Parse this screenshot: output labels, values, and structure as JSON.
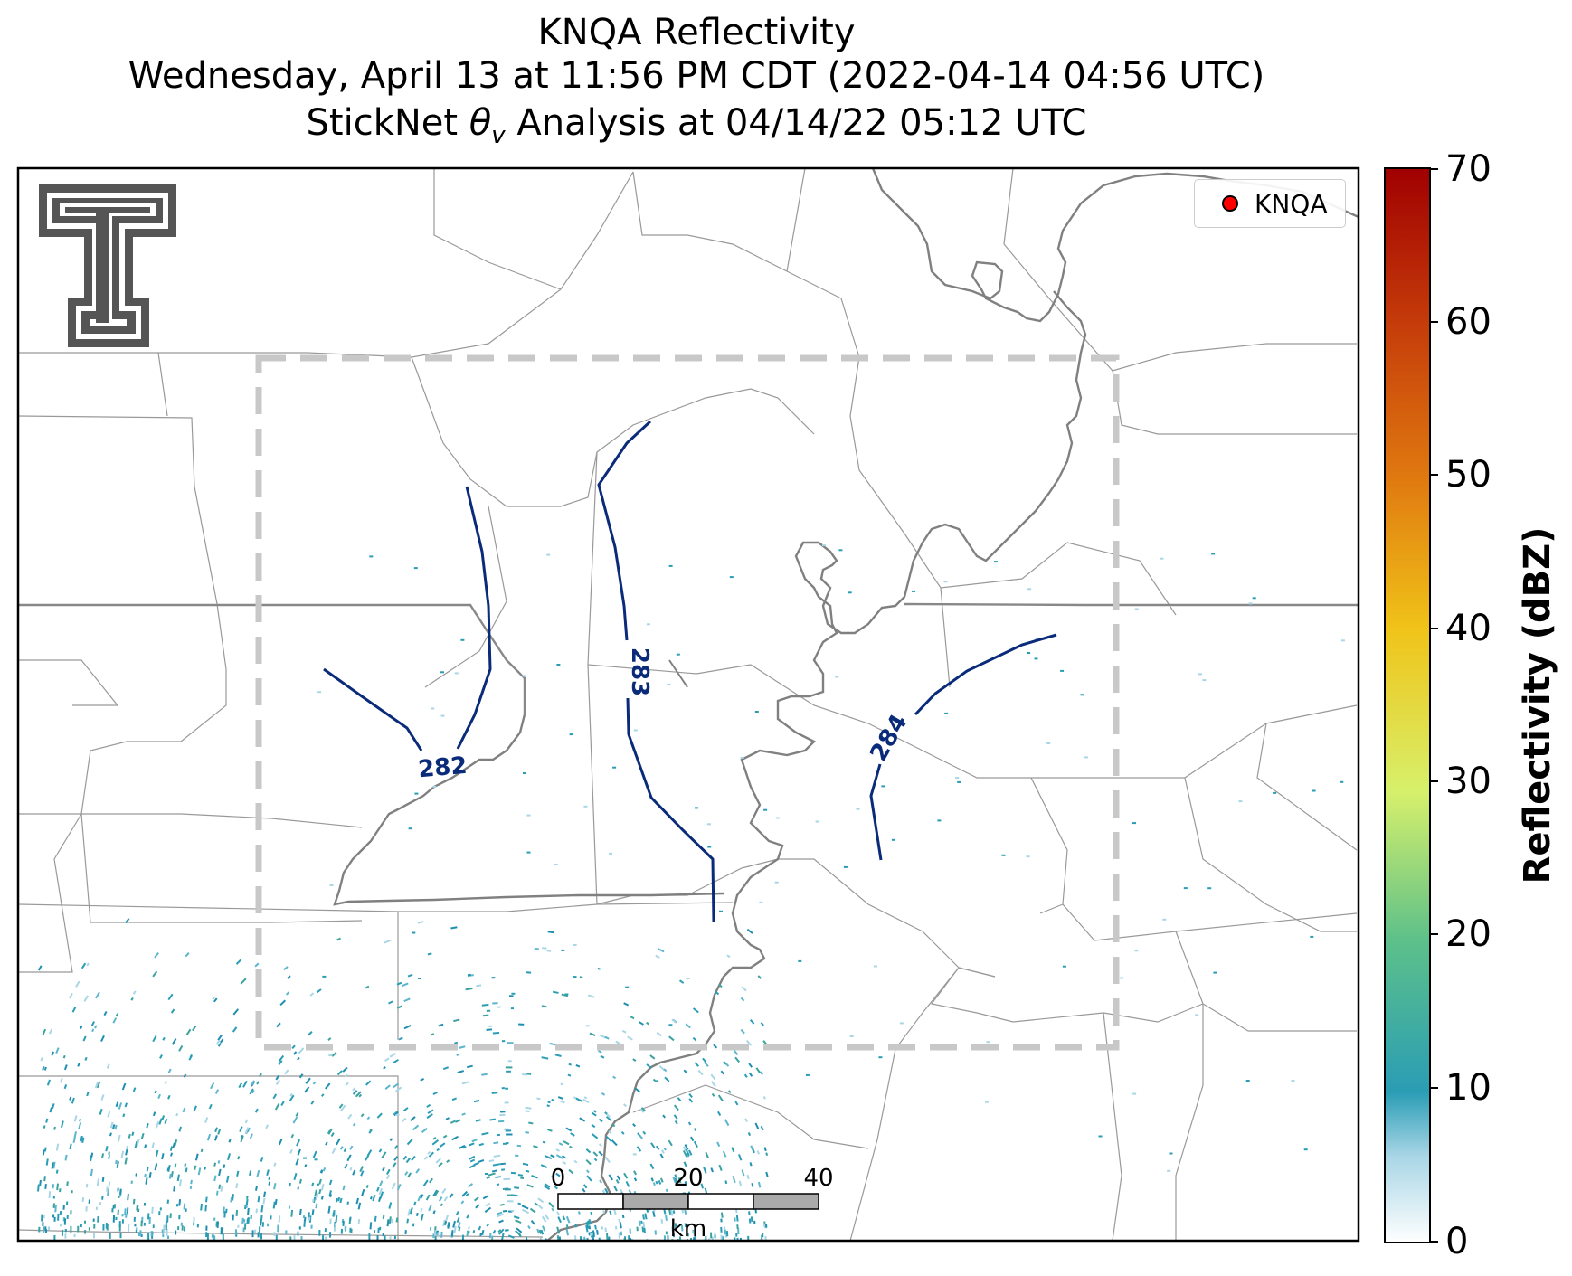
{
  "title": {
    "line1": "KNQA Reflectivity",
    "line2": "Wednesday, April 13 at 11:56 PM CDT (2022-04-14 04:56 UTC)",
    "line3": "StickNet θv Analysis at 04/14/22 05:12 UTC"
  },
  "legend": {
    "label": "KNQA",
    "marker_color": "#ff0000"
  },
  "contours": [
    {
      "label": "282",
      "color": "#0a2a7a"
    },
    {
      "label": "283",
      "color": "#0a2a7a"
    },
    {
      "label": "284",
      "color": "#0a2a7a"
    }
  ],
  "colorbar": {
    "label": "Reflectivity (dBZ)",
    "min": 0,
    "max": 70,
    "ticks": [
      "0",
      "10",
      "20",
      "30",
      "40",
      "50",
      "60",
      "70"
    ],
    "colors": [
      "#ffffff",
      "#a9d6e6",
      "#2a9db5",
      "#5cc08a",
      "#d7f06b",
      "#f0c419",
      "#e07a10",
      "#c43a0a",
      "#a00000"
    ]
  },
  "scale_bar": {
    "ticks": [
      "0",
      "20",
      "40"
    ],
    "unit": "km"
  },
  "logo": {
    "name": "texas-tech-double-t-logo",
    "color": "#555555"
  },
  "analysis_box": {
    "style": "dashed",
    "color": "#c8c8c8"
  },
  "echo_color": "#2a9db5"
}
